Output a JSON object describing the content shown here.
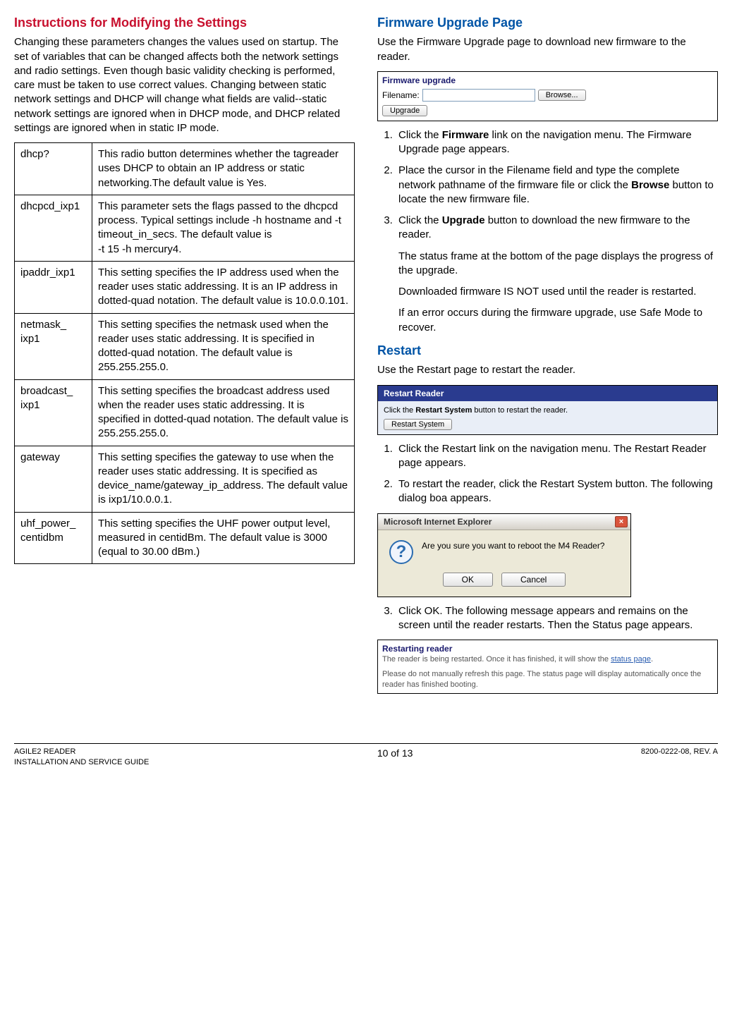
{
  "left": {
    "heading": "Instructions for Modifying the Settings",
    "intro": "Changing these parameters changes the values used on startup. The set of variables that can be changed affects both the network settings and radio settings. Even though basic validity checking is performed, care must be taken to use correct values. Changing between static network settings and DHCP will change what fields are valid--static network settings are ignored when in DHCP mode, and DHCP related settings are ignored when in static IP mode.",
    "rows": [
      {
        "k": "dhcp?",
        "v": "This radio button determines whether the tagreader uses DHCP to obtain an IP address or static networking.The default value is Yes."
      },
      {
        "k": "dhcpcd_ixp1",
        "v": "This parameter sets the flags passed to the dhcpcd process. Typical settings include -h hostname and -t timeout_in_secs. The default value is\n-t 15 -h mercury4."
      },
      {
        "k": "ipaddr_ixp1",
        "v": "This setting specifies the IP address used when the reader uses static addressing. It is an IP address in dotted-quad notation. The default value is 10.0.0.101."
      },
      {
        "k": "netmask_\nixp1",
        "v": "This setting specifies the netmask used when the reader uses static addressing. It is specified in dotted-quad notation. The default value is 255.255.255.0."
      },
      {
        "k": "broadcast_\nixp1",
        "v": "This setting specifies the broadcast address used when the reader uses static addressing. It is specified in dotted-quad notation. The default value is 255.255.255.0."
      },
      {
        "k": "gateway",
        "v": "This setting specifies the gateway to use when the reader uses static addressing. It is specified as device_name/gateway_ip_address. The default value is ixp1/10.0.0.1."
      },
      {
        "k": "uhf_power_\ncentidbm",
        "v": "This setting specifies the UHF power output level, measured in centidBm. The default value is 3000 (equal to 30.00 dBm.)"
      }
    ]
  },
  "right": {
    "fw_heading": "Firmware Upgrade Page",
    "fw_intro": "Use the Firmware Upgrade page to download new firmware to the reader.",
    "fw_box_title": "Firmware upgrade",
    "fw_filename_label": "Filename:",
    "fw_browse": "Browse...",
    "fw_upgrade": "Upgrade",
    "fw_step1a": "Click the ",
    "fw_step1b": "Firmware",
    "fw_step1c": " link on the navigation menu. The Firmware Upgrade page appears.",
    "fw_step2a": "Place the cursor in the Filename field and type the complete network pathname of the firmware file or click the ",
    "fw_step2b": "Browse",
    "fw_step2c": " button to locate the new firmware file.",
    "fw_step3a": "Click the ",
    "fw_step3b": "Upgrade",
    "fw_step3c": " button to download the new firmware to the reader.",
    "fw_sub1": "The status frame at the bottom of the page displays the progress of the upgrade.",
    "fw_sub2": "Downloaded firmware IS NOT used until the reader is restarted.",
    "fw_sub3": "If an error occurs during the firmware upgrade, use Safe Mode to recover.",
    "rs_heading": "Restart",
    "rs_intro": "Use the Restart page to restart the reader.",
    "rs_box_title": "Restart Reader",
    "rs_box_text_a": "Click the ",
    "rs_box_text_b": "Restart System",
    "rs_box_text_c": " button to restart the reader.",
    "rs_btn": "Restart System",
    "rs_step1": "Click the Restart link on the navigation menu. The Restart Reader page appears.",
    "rs_step2": "To restart the reader, click the Restart System button. The following dialog boa appears.",
    "ie_title": "Microsoft Internet Explorer",
    "ie_msg": "Are you sure you want to reboot the M4 Reader?",
    "ie_ok": "OK",
    "ie_cancel": "Cancel",
    "rs_step3": "Click OK. The following message appears and remains on the screen until the reader restarts. Then the Status page appears.",
    "rst_title": "Restarting reader",
    "rst_l1a": "The reader is being restarted. Once it has finished, it will show the ",
    "rst_l1b": "status page",
    "rst_l1c": ".",
    "rst_l2": "Please do not manually refresh this page. The status page will display automatically once the reader has finished booting."
  },
  "footer": {
    "left1": "AGILE2 READER",
    "left2": "INSTALLATION AND SERVICE GUIDE",
    "center": "10 of 13",
    "right": "8200-0222-08, REV. A"
  }
}
